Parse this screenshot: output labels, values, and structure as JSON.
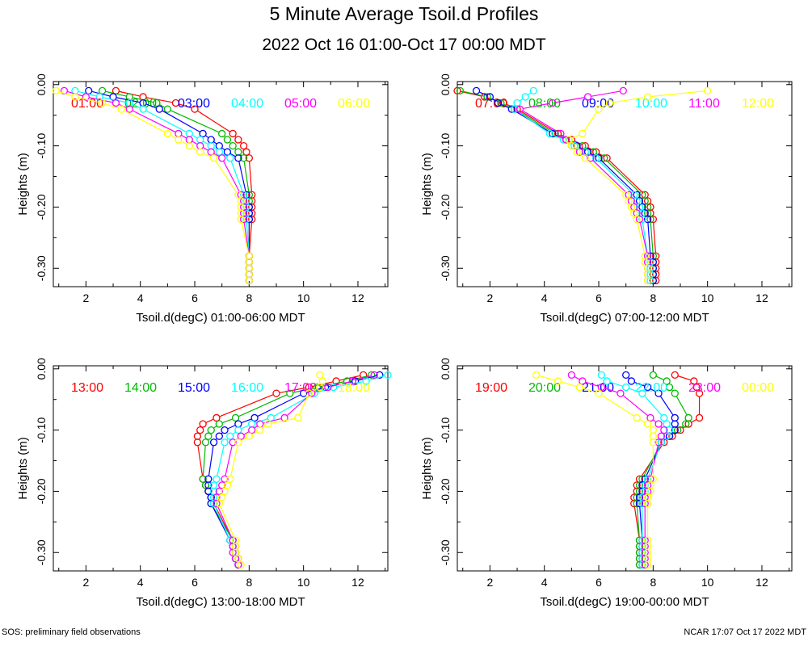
{
  "title": "5 Minute Average Tsoil.d Profiles",
  "subtitle": "2022 Oct 16 01:00-Oct 17 00:00 MDT",
  "footer_left": "SOS: preliminary field observations",
  "footer_right": "NCAR 17:07 Oct 17 2022 MDT",
  "colors": [
    "#ff0000",
    "#00bb00",
    "#0000ff",
    "#00ffff",
    "#ff00ff",
    "#ffff00"
  ],
  "chart_data": [
    {
      "type": "line",
      "xlabel": "Tsoil.d(degC) 01:00-06:00 MDT",
      "ylabel": "Heights (m)",
      "xlim": [
        0.8,
        13.1
      ],
      "ylim": [
        -0.33,
        0.005
      ],
      "xticks": [
        "2",
        "4",
        "6",
        "8",
        "10",
        "12"
      ],
      "yticks": [
        "0.00",
        "-0.10",
        "-0.20",
        "-0.30"
      ],
      "depths": [
        -0.01,
        -0.02,
        -0.03,
        -0.04,
        -0.08,
        -0.09,
        -0.1,
        -0.11,
        -0.12,
        -0.18,
        -0.19,
        -0.2,
        -0.21,
        -0.22,
        -0.28,
        -0.29,
        -0.3,
        -0.31,
        -0.32
      ],
      "series": [
        {
          "name": "01:00",
          "x": [
            3.1,
            4.1,
            5.3,
            6.0,
            7.4,
            7.6,
            7.8,
            7.9,
            8.0,
            8.1,
            8.1,
            8.1,
            8.1,
            8.1,
            8.0,
            8.0,
            8.0,
            8.0,
            8.0
          ]
        },
        {
          "name": "02:00",
          "x": [
            2.6,
            3.6,
            4.6,
            5.0,
            7.0,
            7.2,
            7.4,
            7.6,
            7.8,
            8.0,
            8.0,
            8.0,
            8.0,
            8.0,
            8.0,
            8.0,
            8.0,
            8.0,
            8.0
          ]
        },
        {
          "name": "03:00",
          "x": [
            2.1,
            3.0,
            4.1,
            4.7,
            6.3,
            6.6,
            6.9,
            7.2,
            7.6,
            7.9,
            7.9,
            8.0,
            8.0,
            8.0,
            8.0,
            8.0,
            8.0,
            8.0,
            8.0
          ]
        },
        {
          "name": "04:00",
          "x": [
            1.6,
            2.5,
            3.6,
            4.1,
            5.8,
            6.2,
            6.6,
            6.9,
            7.3,
            7.8,
            7.9,
            7.9,
            7.9,
            7.9,
            8.0,
            8.0,
            8.0,
            8.0,
            8.0
          ]
        },
        {
          "name": "05:00",
          "x": [
            1.2,
            2.0,
            3.1,
            3.6,
            5.4,
            5.8,
            6.2,
            6.6,
            7.0,
            7.7,
            7.8,
            7.8,
            7.8,
            7.8,
            8.0,
            8.0,
            8.0,
            8.0,
            8.0
          ]
        },
        {
          "name": "06:00",
          "x": [
            0.9,
            1.6,
            2.6,
            3.3,
            5.0,
            5.4,
            5.8,
            6.2,
            6.7,
            7.6,
            7.7,
            7.7,
            7.7,
            7.7,
            8.0,
            8.0,
            8.0,
            8.0,
            8.0
          ]
        }
      ]
    },
    {
      "type": "line",
      "xlabel": "Tsoil.d(degC) 07:00-12:00 MDT",
      "ylabel": "Heights (m)",
      "xlim": [
        0.8,
        13.1
      ],
      "ylim": [
        -0.33,
        0.005
      ],
      "xticks": [
        "2",
        "4",
        "6",
        "8",
        "10",
        "12"
      ],
      "yticks": [
        "0.00",
        "-0.10",
        "-0.20",
        "-0.30"
      ],
      "depths": [
        -0.01,
        -0.02,
        -0.03,
        -0.04,
        -0.08,
        -0.09,
        -0.1,
        -0.11,
        -0.12,
        -0.18,
        -0.19,
        -0.2,
        -0.21,
        -0.22,
        -0.28,
        -0.29,
        -0.3,
        -0.31,
        -0.32
      ],
      "series": [
        {
          "name": "07:00",
          "x": [
            0.8,
            1.8,
            2.5,
            3.0,
            4.5,
            5.0,
            5.5,
            5.9,
            6.3,
            7.7,
            7.8,
            7.9,
            7.9,
            8.0,
            8.1,
            8.1,
            8.1,
            8.1,
            8.1
          ]
        },
        {
          "name": "08:00",
          "x": [
            0.9,
            1.9,
            2.4,
            2.9,
            4.4,
            4.9,
            5.4,
            5.8,
            6.2,
            7.6,
            7.7,
            7.8,
            7.8,
            7.9,
            8.0,
            8.0,
            8.0,
            8.0,
            8.0
          ]
        },
        {
          "name": "09:00",
          "x": [
            1.5,
            2.0,
            2.3,
            2.8,
            4.3,
            4.8,
            5.2,
            5.6,
            6.0,
            7.4,
            7.5,
            7.6,
            7.7,
            7.8,
            7.9,
            8.0,
            8.0,
            8.0,
            8.0
          ]
        },
        {
          "name": "10:00",
          "x": [
            3.6,
            3.3,
            3.0,
            2.9,
            4.2,
            4.7,
            5.1,
            5.5,
            5.9,
            7.3,
            7.4,
            7.5,
            7.6,
            7.6,
            7.8,
            7.9,
            7.9,
            7.9,
            7.9
          ]
        },
        {
          "name": "11:00",
          "x": [
            6.9,
            5.6,
            4.3,
            3.1,
            4.6,
            4.8,
            5.0,
            5.3,
            5.7,
            7.1,
            7.2,
            7.3,
            7.4,
            7.5,
            7.8,
            7.8,
            7.8,
            7.8,
            7.8
          ]
        },
        {
          "name": "12:00",
          "x": [
            10.0,
            7.8,
            6.4,
            6.0,
            5.4,
            4.9,
            5.0,
            5.2,
            5.5,
            7.0,
            7.1,
            7.2,
            7.3,
            7.4,
            7.7,
            7.7,
            7.8,
            7.8,
            7.8
          ]
        }
      ]
    },
    {
      "type": "line",
      "xlabel": "Tsoil.d(degC) 13:00-18:00 MDT",
      "ylabel": "Heights (m)",
      "xlim": [
        0.8,
        13.1
      ],
      "ylim": [
        -0.33,
        0.005
      ],
      "xticks": [
        "2",
        "4",
        "6",
        "8",
        "10",
        "12"
      ],
      "yticks": [
        "0.00",
        "-0.10",
        "-0.20",
        "-0.30"
      ],
      "depths": [
        -0.01,
        -0.02,
        -0.03,
        -0.04,
        -0.08,
        -0.09,
        -0.1,
        -0.11,
        -0.12,
        -0.18,
        -0.19,
        -0.2,
        -0.21,
        -0.22,
        -0.28,
        -0.29,
        -0.3,
        -0.31,
        -0.32
      ],
      "series": [
        {
          "name": "13:00",
          "x": [
            12.2,
            11.2,
            10.2,
            9.0,
            6.8,
            6.3,
            6.2,
            6.1,
            6.1,
            6.3,
            6.4,
            6.5,
            6.6,
            6.7,
            7.4,
            7.5,
            7.5,
            7.6,
            7.6
          ]
        },
        {
          "name": "14:00",
          "x": [
            12.5,
            11.6,
            10.5,
            9.5,
            7.5,
            6.9,
            6.6,
            6.5,
            6.4,
            6.3,
            6.4,
            6.5,
            6.6,
            6.6,
            7.4,
            7.4,
            7.5,
            7.5,
            7.6
          ]
        },
        {
          "name": "15:00",
          "x": [
            12.8,
            11.9,
            10.8,
            10.0,
            8.2,
            7.6,
            7.1,
            6.9,
            6.7,
            6.5,
            6.5,
            6.5,
            6.6,
            6.6,
            7.3,
            7.4,
            7.5,
            7.5,
            7.6
          ]
        },
        {
          "name": "16:00",
          "x": [
            13.1,
            12.3,
            11.1,
            10.4,
            8.8,
            8.1,
            7.6,
            7.3,
            7.1,
            6.8,
            6.7,
            6.7,
            6.7,
            6.7,
            7.3,
            7.4,
            7.4,
            7.5,
            7.6
          ]
        },
        {
          "name": "17:00",
          "x": [
            12.6,
            11.8,
            10.9,
            10.3,
            9.3,
            8.4,
            8.1,
            7.7,
            7.4,
            7.1,
            7.0,
            6.9,
            6.8,
            6.8,
            7.4,
            7.4,
            7.4,
            7.5,
            7.6
          ]
        },
        {
          "name": "18:00",
          "x": [
            10.6,
            10.7,
            10.6,
            10.2,
            9.8,
            8.7,
            8.4,
            8.0,
            7.6,
            7.3,
            7.2,
            7.1,
            7.0,
            6.9,
            7.5,
            7.5,
            7.5,
            7.6,
            7.7
          ]
        }
      ]
    },
    {
      "type": "line",
      "xlabel": "Tsoil.d(degC) 19:00-00:00 MDT",
      "ylabel": "Heights (m)",
      "xlim": [
        0.8,
        13.1
      ],
      "ylim": [
        -0.33,
        0.005
      ],
      "xticks": [
        "2",
        "4",
        "6",
        "8",
        "10",
        "12"
      ],
      "yticks": [
        "0.00",
        "-0.10",
        "-0.20",
        "-0.30"
      ],
      "depths": [
        -0.01,
        -0.02,
        -0.03,
        -0.04,
        -0.08,
        -0.09,
        -0.1,
        -0.11,
        -0.12,
        -0.18,
        -0.19,
        -0.2,
        -0.21,
        -0.22,
        -0.28,
        -0.29,
        -0.3,
        -0.31,
        -0.32
      ],
      "series": [
        {
          "name": "19:00",
          "x": [
            8.8,
            9.5,
            9.6,
            9.7,
            9.7,
            9.3,
            9.0,
            8.7,
            8.4,
            7.5,
            7.4,
            7.4,
            7.3,
            7.3,
            7.5,
            7.5,
            7.5,
            7.5,
            7.5
          ]
        },
        {
          "name": "20:00",
          "x": [
            8.0,
            8.5,
            8.6,
            8.8,
            9.3,
            9.2,
            8.9,
            8.6,
            8.3,
            7.6,
            7.5,
            7.5,
            7.4,
            7.4,
            7.5,
            7.5,
            7.5,
            7.5,
            7.5
          ]
        },
        {
          "name": "21:00",
          "x": [
            7.0,
            7.2,
            7.8,
            8.2,
            8.8,
            8.8,
            8.8,
            8.6,
            8.3,
            7.7,
            7.6,
            7.6,
            7.5,
            7.5,
            7.6,
            7.6,
            7.6,
            7.6,
            7.6
          ]
        },
        {
          "name": "22:00",
          "x": [
            6.1,
            6.3,
            7.0,
            7.6,
            8.4,
            8.5,
            8.6,
            8.5,
            8.3,
            7.8,
            7.7,
            7.7,
            7.6,
            7.6,
            7.6,
            7.6,
            7.6,
            7.6,
            7.6
          ]
        },
        {
          "name": "23:00",
          "x": [
            5.0,
            5.4,
            6.1,
            6.8,
            7.9,
            8.2,
            8.4,
            8.3,
            8.2,
            7.9,
            7.8,
            7.8,
            7.7,
            7.7,
            7.7,
            7.7,
            7.7,
            7.7,
            7.7
          ]
        },
        {
          "name": "00:00",
          "x": [
            3.7,
            4.5,
            5.3,
            6.0,
            7.4,
            7.8,
            8.0,
            8.0,
            8.0,
            8.0,
            7.9,
            7.9,
            7.8,
            7.8,
            7.8,
            7.8,
            7.8,
            7.8,
            7.8
          ]
        }
      ]
    }
  ]
}
